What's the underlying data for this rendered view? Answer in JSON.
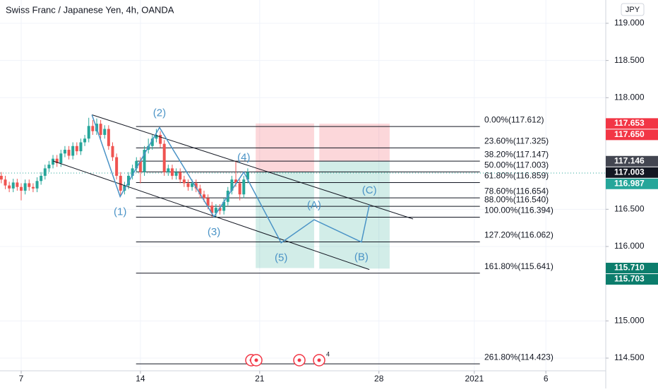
{
  "chart_data": {
    "type": "candlestick",
    "title": "Swiss Franc / Japanese Yen, 4h, OANDA",
    "currency": "JPY",
    "xlim": [
      -5.33,
      147.07
    ],
    "ylim": [
      114.329,
      119.313
    ],
    "grid": true,
    "xticks": [
      {
        "value": 0,
        "label": "7"
      },
      {
        "value": 30,
        "label": "14"
      },
      {
        "value": 60,
        "label": "21"
      },
      {
        "value": 90,
        "label": "28"
      },
      {
        "value": 114,
        "label": "2021"
      },
      {
        "value": 132,
        "label": "6"
      }
    ],
    "yticks": [
      {
        "value": 119,
        "label": "119.000"
      },
      {
        "value": 118.5,
        "label": "118.500"
      },
      {
        "value": 118,
        "label": "118.000"
      },
      {
        "value": 116.5,
        "label": "116.500"
      },
      {
        "value": 116,
        "label": "116.000"
      },
      {
        "value": 115,
        "label": "115.000"
      },
      {
        "value": 114.5,
        "label": "114.500"
      }
    ],
    "up_color": "#26a69a",
    "down_color": "#ef5350",
    "x": [
      -5,
      -4,
      -3,
      -2,
      -1,
      0,
      1,
      2,
      3,
      4,
      5,
      6,
      7,
      8,
      9,
      10,
      11,
      12,
      13,
      14,
      15,
      16,
      17,
      18,
      19,
      20,
      21,
      22,
      23,
      24,
      25,
      26,
      27,
      28,
      29,
      30,
      31,
      32,
      33,
      34,
      35,
      36,
      37,
      38,
      39,
      40,
      41,
      42,
      43,
      44,
      45,
      46,
      47,
      48,
      49,
      50,
      51,
      52,
      53,
      54,
      55,
      56,
      57
    ],
    "open": [
      116.95,
      116.9,
      116.82,
      116.78,
      116.86,
      116.8,
      116.75,
      116.85,
      116.8,
      116.78,
      116.88,
      116.95,
      117.05,
      117.1,
      117.18,
      117.12,
      117.25,
      117.3,
      117.22,
      117.35,
      117.28,
      117.4,
      117.45,
      117.62,
      117.55,
      117.65,
      117.5,
      117.58,
      117.35,
      117.2,
      116.95,
      116.75,
      116.82,
      116.95,
      117.05,
      117.15,
      117.0,
      117.3,
      117.35,
      117.45,
      117.5,
      117.38,
      117.0,
      117.05,
      116.95,
      117.0,
      116.9,
      116.85,
      116.8,
      116.85,
      116.78,
      116.7,
      116.65,
      116.55,
      116.45,
      116.52,
      116.48,
      116.6,
      116.75,
      116.9,
      116.85,
      116.7,
      116.9
    ],
    "high": [
      117.0,
      116.95,
      116.87,
      116.91,
      116.91,
      116.85,
      116.9,
      116.9,
      116.85,
      116.93,
      117.0,
      117.1,
      117.15,
      117.23,
      117.23,
      117.3,
      117.35,
      117.35,
      117.4,
      117.4,
      117.45,
      117.5,
      117.73,
      117.7,
      117.72,
      117.7,
      117.63,
      117.63,
      117.4,
      117.25,
      117.0,
      116.87,
      117.0,
      117.1,
      117.2,
      117.2,
      117.35,
      117.45,
      117.5,
      117.58,
      117.55,
      117.43,
      117.1,
      117.1,
      117.05,
      117.05,
      116.95,
      116.9,
      116.9,
      116.9,
      116.83,
      116.75,
      116.7,
      116.6,
      116.57,
      116.57,
      116.65,
      116.8,
      116.95,
      117.15,
      116.9,
      116.95,
      117.05
    ],
    "low": [
      116.85,
      116.77,
      116.73,
      116.73,
      116.75,
      116.62,
      116.7,
      116.75,
      116.73,
      116.73,
      116.83,
      116.9,
      117.0,
      117.05,
      117.07,
      117.07,
      117.2,
      117.17,
      117.17,
      117.23,
      117.23,
      117.35,
      117.4,
      117.5,
      117.5,
      117.45,
      117.45,
      117.3,
      117.15,
      116.9,
      116.68,
      116.7,
      116.77,
      116.9,
      117.0,
      116.85,
      116.95,
      117.25,
      117.3,
      117.4,
      117.33,
      116.95,
      116.95,
      116.9,
      116.9,
      116.85,
      116.8,
      116.75,
      116.75,
      116.73,
      116.65,
      116.6,
      116.5,
      116.4,
      116.4,
      116.43,
      116.43,
      116.55,
      116.7,
      116.8,
      116.62,
      116.65,
      116.85
    ],
    "close": [
      116.9,
      116.82,
      116.78,
      116.86,
      116.8,
      116.75,
      116.85,
      116.8,
      116.78,
      116.88,
      116.95,
      117.05,
      117.1,
      117.18,
      117.12,
      117.25,
      117.3,
      117.22,
      117.35,
      117.28,
      117.4,
      117.45,
      117.62,
      117.55,
      117.65,
      117.5,
      117.58,
      117.35,
      117.2,
      116.95,
      116.75,
      116.82,
      116.95,
      117.05,
      117.15,
      117.0,
      117.3,
      117.35,
      117.45,
      117.5,
      117.38,
      117.0,
      117.05,
      116.95,
      117.0,
      116.9,
      116.85,
      116.8,
      116.85,
      116.78,
      116.7,
      116.65,
      116.55,
      116.45,
      116.52,
      116.48,
      116.6,
      116.75,
      116.9,
      116.85,
      116.7,
      116.9,
      117.0
    ],
    "fib_range": [
      28.9,
      115.4
    ],
    "fib_levels": [
      {
        "value": 117.612,
        "label": "0.00%(117.612)"
      },
      {
        "value": 117.325,
        "label": "23.60%(117.325)"
      },
      {
        "value": 117.147,
        "label": "38.20%(117.147)"
      },
      {
        "value": 117.003,
        "label": "50.00%(117.003)"
      },
      {
        "value": 116.859,
        "label": "61.80%(116.859)"
      },
      {
        "value": 116.654,
        "label": "78.60%(116.654)"
      },
      {
        "value": 116.54,
        "label": "88.00%(116.540)"
      },
      {
        "value": 116.394,
        "label": "100.00%(116.394)"
      },
      {
        "value": 116.062,
        "label": "127.20%(116.062)"
      },
      {
        "value": 115.641,
        "label": "161.80%(115.641)"
      },
      {
        "value": 114.423,
        "label": "261.80%(114.423)"
      }
    ],
    "wave": {
      "color": "#4a93c6",
      "x": [
        17.8,
        24.9,
        34.8,
        48.5,
        56.0,
        65.4,
        73.7,
        85.6,
        87.6
      ],
      "y": [
        117.77,
        116.67,
        117.6,
        116.4,
        117.0,
        116.05,
        116.36,
        116.06,
        116.56
      ],
      "labels": [
        null,
        "(1)",
        "(2)",
        "(3)",
        "(4)",
        "(5)",
        "(A)",
        "(B)",
        "(C)"
      ]
    },
    "channels": [
      {
        "x": [
          17.8,
          98.6
        ],
        "y": [
          117.77,
          116.37
        ]
      },
      {
        "x": [
          8.0,
          87.6
        ],
        "y": [
          117.15,
          115.69
        ]
      }
    ],
    "positions": [
      {
        "x": [
          59.0,
          73.7
        ],
        "stop": 117.653,
        "entry": 117.003,
        "target": 115.71
      },
      {
        "x": [
          75.0,
          92.7
        ],
        "stop": 117.65,
        "entry": 117.146,
        "target": 115.703
      }
    ],
    "last_price": 116.987,
    "price_tags": [
      {
        "value": 117.653,
        "label": "117.653",
        "color": "#f23645"
      },
      {
        "value": 117.65,
        "label": "117.650",
        "color": "#f23645"
      },
      {
        "value": 117.146,
        "label": "117.146",
        "color": "#434651"
      },
      {
        "value": 117.003,
        "label": "117.003",
        "color": "#131722"
      },
      {
        "value": 116.987,
        "label": "116.987",
        "color": "#26a69a"
      },
      {
        "value": 115.71,
        "label": "115.710",
        "color": "#0c7d6c"
      },
      {
        "value": 115.703,
        "label": "115.703",
        "color": "#0c7d6c"
      }
    ],
    "events_badge": 4
  }
}
